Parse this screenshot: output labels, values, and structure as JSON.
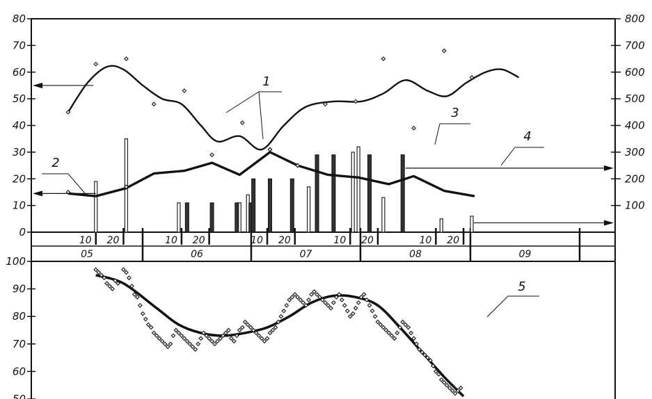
{
  "chart_data": {
    "type": "line",
    "top_panel": {
      "x_domain": [
        0,
        185
      ],
      "left_axis": {
        "ticks": [
          "80",
          "70",
          "60",
          "50",
          "40",
          "30",
          "20",
          "10",
          "0"
        ],
        "range": [
          0,
          80
        ]
      },
      "right_axis": {
        "ticks": [
          "800",
          "700",
          "600",
          "500",
          "400",
          "300",
          "200",
          "100"
        ],
        "range": [
          0,
          800
        ]
      },
      "month_labels": [
        "05",
        "06",
        "07",
        "08",
        "09"
      ],
      "decade_labels": [
        {
          "x": 10,
          "text": "10"
        },
        {
          "x": 20,
          "text": "20"
        },
        {
          "x": 41,
          "text": "10"
        },
        {
          "x": 51,
          "text": "20"
        },
        {
          "x": 72,
          "text": "10"
        },
        {
          "x": 82,
          "text": "20"
        },
        {
          "x": 102,
          "text": "10"
        },
        {
          "x": 112,
          "text": "20"
        },
        {
          "x": 133,
          "text": "10"
        },
        {
          "x": 143,
          "text": "20"
        }
      ],
      "series": [
        {
          "id": "1",
          "style": "smooth",
          "points": [
            [
              0,
              45
            ],
            [
              7,
              56
            ],
            [
              14,
              62
            ],
            [
              20,
              61
            ],
            [
              27,
              55
            ],
            [
              34,
              50
            ],
            [
              41,
              48
            ],
            [
              48,
              40
            ],
            [
              54,
              34
            ],
            [
              62,
              36
            ],
            [
              70,
              31
            ],
            [
              78,
              40
            ],
            [
              86,
              47
            ],
            [
              96,
              49
            ],
            [
              106,
              49
            ],
            [
              114,
              52
            ],
            [
              122,
              57
            ],
            [
              130,
              53
            ],
            [
              137,
              51
            ],
            [
              144,
              56
            ],
            [
              151,
              60
            ],
            [
              157,
              61
            ],
            [
              163,
              58
            ]
          ]
        },
        {
          "id": "2",
          "style": "polyline",
          "points": [
            [
              0,
              14.5
            ],
            [
              10,
              13.5
            ],
            [
              21,
              16.5
            ],
            [
              31,
              22
            ],
            [
              42,
              23
            ],
            [
              52,
              26
            ],
            [
              62,
              21.5
            ],
            [
              73,
              30
            ],
            [
              83,
              25
            ],
            [
              94,
              21.5
            ],
            [
              105,
              20.5
            ],
            [
              116,
              18
            ],
            [
              125,
              21
            ],
            [
              136,
              15.5
            ],
            [
              147,
              13.5
            ]
          ]
        },
        {
          "id": "5",
          "style": "smooth",
          "y_range": [
            50,
            100
          ],
          "points": [
            [
              10,
              95
            ],
            [
              20,
              92
            ],
            [
              32,
              83
            ],
            [
              40,
              77
            ],
            [
              48,
              74
            ],
            [
              56,
              73
            ],
            [
              64,
              74
            ],
            [
              72,
              76
            ],
            [
              80,
              80
            ],
            [
              88,
              85
            ],
            [
              96,
              87.5
            ],
            [
              104,
              87
            ],
            [
              112,
              84
            ],
            [
              120,
              76
            ],
            [
              128,
              67
            ],
            [
              136,
              58
            ],
            [
              143,
              51
            ]
          ]
        }
      ],
      "scatter_1": [
        [
          0,
          45
        ],
        [
          10,
          63
        ],
        [
          21,
          65
        ],
        [
          31,
          48
        ],
        [
          42,
          53
        ],
        [
          63,
          41
        ],
        [
          73,
          31
        ],
        [
          83,
          25
        ],
        [
          93,
          48
        ],
        [
          104,
          49
        ],
        [
          114,
          65
        ],
        [
          125,
          39
        ],
        [
          136,
          68
        ],
        [
          146,
          58
        ]
      ],
      "scatter_2": [
        [
          0,
          15
        ],
        [
          21,
          17
        ],
        [
          52,
          29
        ],
        [
          73,
          31
        ],
        [
          83,
          25
        ]
      ],
      "bars_hollow": [
        [
          10,
          19
        ],
        [
          21,
          35
        ],
        [
          40,
          11
        ],
        [
          62,
          11
        ],
        [
          65,
          14
        ],
        [
          87,
          17
        ],
        [
          103,
          30
        ],
        [
          105,
          32
        ],
        [
          114,
          13
        ],
        [
          135,
          5
        ],
        [
          146,
          6
        ]
      ],
      "bars_solid": [
        [
          43,
          11
        ],
        [
          52,
          11
        ],
        [
          61,
          11
        ],
        [
          66,
          11
        ],
        [
          67,
          20
        ],
        [
          73,
          20
        ],
        [
          81,
          20
        ],
        [
          90,
          29
        ],
        [
          96,
          29
        ],
        [
          109,
          29
        ],
        [
          121,
          29
        ]
      ]
    },
    "bottom_panel": {
      "left_axis": {
        "ticks": [
          "100",
          "90",
          "80",
          "70",
          "60",
          "50"
        ],
        "range": [
          50,
          100
        ]
      },
      "scatter": [
        [
          10,
          97
        ],
        [
          11,
          96
        ],
        [
          12,
          95
        ],
        [
          13,
          94
        ],
        [
          14,
          92
        ],
        [
          15,
          91
        ],
        [
          16,
          90
        ],
        [
          17,
          93
        ],
        [
          18,
          92
        ],
        [
          20,
          97
        ],
        [
          21,
          96
        ],
        [
          22,
          94
        ],
        [
          23,
          91
        ],
        [
          24,
          88
        ],
        [
          25,
          87
        ],
        [
          26,
          84
        ],
        [
          27,
          81
        ],
        [
          28,
          79
        ],
        [
          29,
          77
        ],
        [
          30,
          76
        ],
        [
          31,
          74
        ],
        [
          32,
          73
        ],
        [
          33,
          72
        ],
        [
          34,
          71
        ],
        [
          35,
          70
        ],
        [
          36,
          69
        ],
        [
          37,
          70
        ],
        [
          38,
          73
        ],
        [
          39,
          75
        ],
        [
          40,
          74
        ],
        [
          41,
          73
        ],
        [
          42,
          72
        ],
        [
          43,
          71
        ],
        [
          44,
          70
        ],
        [
          45,
          69
        ],
        [
          46,
          68
        ],
        [
          47,
          70
        ],
        [
          48,
          72
        ],
        [
          49,
          74
        ],
        [
          50,
          73
        ],
        [
          51,
          72
        ],
        [
          52,
          71
        ],
        [
          53,
          70
        ],
        [
          54,
          71
        ],
        [
          55,
          72
        ],
        [
          56,
          73
        ],
        [
          57,
          74
        ],
        [
          58,
          75
        ],
        [
          59,
          72
        ],
        [
          60,
          71
        ],
        [
          61,
          73
        ],
        [
          62,
          75
        ],
        [
          63,
          76
        ],
        [
          64,
          78
        ],
        [
          65,
          77
        ],
        [
          66,
          76
        ],
        [
          67,
          75
        ],
        [
          68,
          74
        ],
        [
          69,
          73
        ],
        [
          70,
          72
        ],
        [
          71,
          71
        ],
        [
          72,
          72
        ],
        [
          73,
          74
        ],
        [
          74,
          75
        ],
        [
          75,
          76
        ],
        [
          76,
          78
        ],
        [
          77,
          80
        ],
        [
          78,
          82
        ],
        [
          79,
          84
        ],
        [
          80,
          86
        ],
        [
          81,
          87
        ],
        [
          82,
          88
        ],
        [
          83,
          87
        ],
        [
          84,
          86
        ],
        [
          85,
          85
        ],
        [
          86,
          84
        ],
        [
          87,
          86
        ],
        [
          88,
          88
        ],
        [
          89,
          89
        ],
        [
          90,
          88
        ],
        [
          91,
          87
        ],
        [
          92,
          86
        ],
        [
          93,
          85
        ],
        [
          94,
          84
        ],
        [
          95,
          83
        ],
        [
          96,
          85
        ],
        [
          97,
          87
        ],
        [
          98,
          88
        ],
        [
          99,
          86
        ],
        [
          100,
          84
        ],
        [
          101,
          82
        ],
        [
          102,
          80
        ],
        [
          103,
          81
        ],
        [
          104,
          83
        ],
        [
          105,
          85
        ],
        [
          106,
          87
        ],
        [
          107,
          88
        ],
        [
          108,
          86
        ],
        [
          109,
          84
        ],
        [
          110,
          82
        ],
        [
          111,
          80
        ],
        [
          112,
          78
        ],
        [
          113,
          77
        ],
        [
          114,
          76
        ],
        [
          115,
          75
        ],
        [
          116,
          74
        ],
        [
          117,
          73
        ],
        [
          118,
          72
        ],
        [
          119,
          74
        ],
        [
          120,
          76
        ],
        [
          121,
          78
        ],
        [
          122,
          77
        ],
        [
          123,
          76
        ],
        [
          124,
          74
        ],
        [
          125,
          72
        ],
        [
          126,
          70
        ],
        [
          127,
          68
        ],
        [
          128,
          67
        ],
        [
          129,
          66
        ],
        [
          130,
          65
        ],
        [
          131,
          64
        ],
        [
          132,
          62
        ],
        [
          133,
          60
        ],
        [
          134,
          59
        ],
        [
          135,
          57
        ],
        [
          136,
          56
        ],
        [
          137,
          55
        ],
        [
          138,
          54
        ],
        [
          139,
          53
        ],
        [
          140,
          52
        ],
        [
          141,
          53
        ],
        [
          142,
          54
        ]
      ]
    },
    "callouts": [
      {
        "label": "1",
        "target_series": "1"
      },
      {
        "label": "2",
        "target_series": "2"
      },
      {
        "label": "3",
        "target_series": "bars_hollow"
      },
      {
        "label": "4",
        "target_series": "bars_solid"
      },
      {
        "label": "5",
        "target_series": "5"
      }
    ]
  }
}
